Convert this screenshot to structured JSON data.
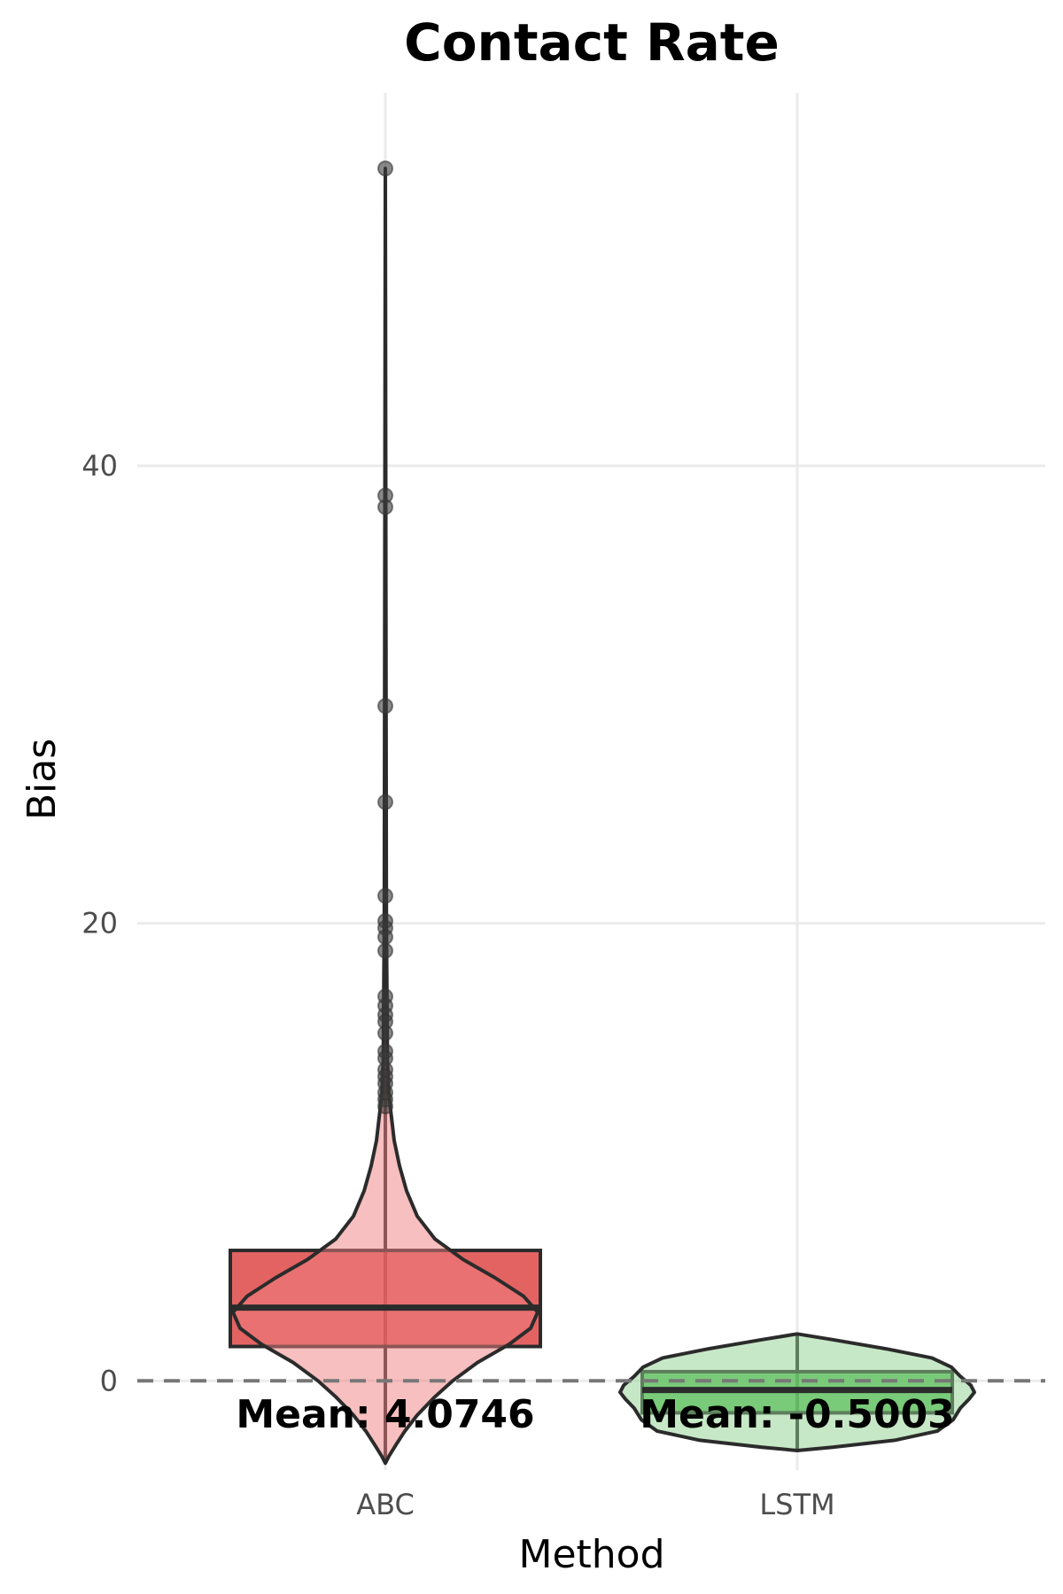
{
  "chart_data": {
    "type": "violin",
    "title": "Contact Rate",
    "xlabel": "Method",
    "ylabel": "Bias",
    "ylim": [
      -3.9,
      56.3
    ],
    "yticks": [
      0,
      20,
      40
    ],
    "grid": true,
    "reference_line": {
      "y": 0,
      "style": "dashed"
    },
    "categories": [
      "ABC",
      "LSTM"
    ],
    "series": [
      {
        "category": "ABC",
        "mean_label": "Mean: 4.0746",
        "violin_color": "#f08080",
        "box_color": "#dc3c3c",
        "box": {
          "q1": 1.5,
          "median": 3.2,
          "q3": 5.7,
          "whisker_low": -3.6,
          "whisker_high": 53.0
        },
        "density": [
          [
            -3.6,
            0.0
          ],
          [
            -3.3,
            0.02
          ],
          [
            -2.8,
            0.06
          ],
          [
            -2.2,
            0.11
          ],
          [
            -1.5,
            0.18
          ],
          [
            -0.7,
            0.28
          ],
          [
            0.0,
            0.38
          ],
          [
            0.8,
            0.52
          ],
          [
            1.6,
            0.7
          ],
          [
            2.3,
            0.82
          ],
          [
            3.0,
            0.86
          ],
          [
            3.7,
            0.78
          ],
          [
            4.5,
            0.62
          ],
          [
            5.3,
            0.44
          ],
          [
            6.2,
            0.28
          ],
          [
            7.2,
            0.18
          ],
          [
            8.3,
            0.12
          ],
          [
            9.4,
            0.08
          ],
          [
            10.5,
            0.05
          ],
          [
            11.5,
            0.035
          ],
          [
            12.5,
            0.02
          ],
          [
            14.0,
            0.012
          ],
          [
            20.0,
            0.006
          ],
          [
            30.0,
            0.004
          ],
          [
            53.0,
            0.0
          ]
        ],
        "outliers": [
          53.0,
          38.7,
          38.2,
          29.5,
          25.3,
          21.2,
          20.1,
          19.8,
          19.4,
          18.8,
          16.8,
          16.4,
          16.0,
          15.7,
          15.2,
          14.4,
          14.1,
          13.6,
          13.3,
          13.0,
          12.6,
          12.3,
          12.0
        ]
      },
      {
        "category": "LSTM",
        "mean_label": "Mean: -0.5003",
        "violin_color": "#8fd18f",
        "box_color": "#3cb43c",
        "box": {
          "q1": -1.4,
          "median": -0.4,
          "q3": 0.4,
          "whisker_low": -3.0,
          "whisker_high": 2.0
        },
        "density": [
          [
            -3.05,
            0.0
          ],
          [
            -2.9,
            0.2
          ],
          [
            -2.6,
            0.55
          ],
          [
            -2.2,
            0.79
          ],
          [
            -1.7,
            0.88
          ],
          [
            -1.2,
            0.92
          ],
          [
            -0.8,
            0.97
          ],
          [
            -0.5,
            1.0
          ],
          [
            -0.2,
            0.98
          ],
          [
            0.2,
            0.92
          ],
          [
            0.6,
            0.87
          ],
          [
            1.0,
            0.76
          ],
          [
            1.4,
            0.5
          ],
          [
            1.8,
            0.2
          ],
          [
            2.05,
            0.0
          ]
        ],
        "outliers": []
      }
    ]
  }
}
